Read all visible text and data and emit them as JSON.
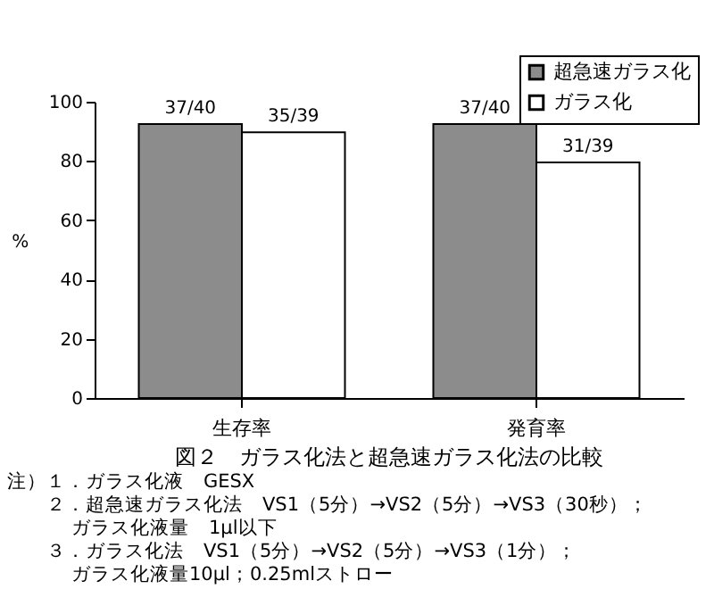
{
  "chart_data": {
    "type": "bar",
    "title": "図２　ガラス化法と超急速ガラス化法の比較",
    "ylabel": "%",
    "categories": [
      "生存率",
      "発育率"
    ],
    "series": [
      {
        "name": "超急速ガラス化",
        "color": "#8c8c8c",
        "values": [
          92.5,
          92.5
        ],
        "value_labels": [
          "37/40",
          "37/40"
        ]
      },
      {
        "name": "ガラス化",
        "color": "#ffffff",
        "values": [
          89.7,
          79.5
        ],
        "value_labels": [
          "35/39",
          "31/39"
        ]
      }
    ],
    "ylim": [
      0,
      100
    ],
    "yticks": [
      0,
      20,
      40,
      60,
      80,
      100
    ],
    "grid": false,
    "legend": "top right",
    "annotations": [
      "注）１．ガラス化液　GESX",
      "２．超急速ガラス化法　VS1（5分）→VS2（5分）→VS3（30秒）；",
      "ガラス化液量　1μl以下",
      "３．ガラス化法　VS1（5分）→VS2（5分）→VS3（1分）；",
      "ガラス化液量10μl；0.25mlストロー"
    ]
  }
}
